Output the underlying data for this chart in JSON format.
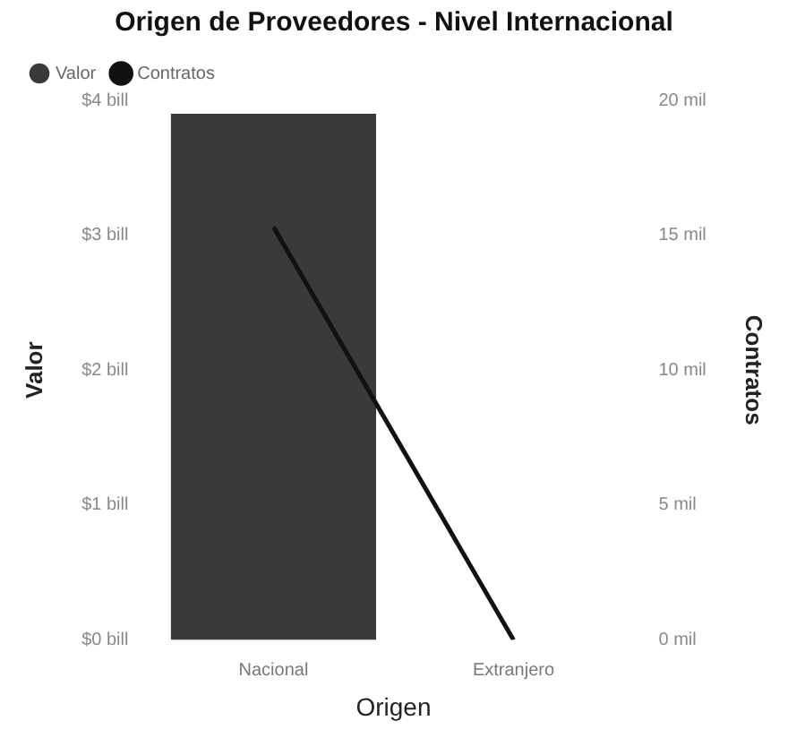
{
  "chart_data": {
    "type": "bar",
    "title": "Origen de Proveedores - Nivel Internacional",
    "xlabel": "Origen",
    "ylabel": "Valor",
    "y2label": "Contratos",
    "categories": [
      "Nacional",
      "Extranjero"
    ],
    "series": [
      {
        "name": "Valor",
        "color": "#3a3a3a",
        "values": [
          3.9,
          0
        ]
      },
      {
        "name": "Contratos",
        "type": "line",
        "axis": "y2",
        "color": "#111111",
        "values": [
          15.3,
          0
        ]
      }
    ],
    "ylim": [
      0,
      4
    ],
    "yticks": [
      {
        "value": 0,
        "label": "$0 bill"
      },
      {
        "value": 1,
        "label": "$1 bill"
      },
      {
        "value": 2,
        "label": "$2 bill"
      },
      {
        "value": 3,
        "label": "$3 bill"
      },
      {
        "value": 4,
        "label": "$4 bill"
      }
    ],
    "y2lim": [
      0,
      20
    ],
    "y2ticks": [
      {
        "value": 0,
        "label": "0 mil"
      },
      {
        "value": 5,
        "label": "5 mil"
      },
      {
        "value": 10,
        "label": "10 mil"
      },
      {
        "value": 15,
        "label": "15 mil"
      },
      {
        "value": 20,
        "label": "20 mil"
      }
    ],
    "legend": "top left",
    "grid": false,
    "marker": "none"
  }
}
